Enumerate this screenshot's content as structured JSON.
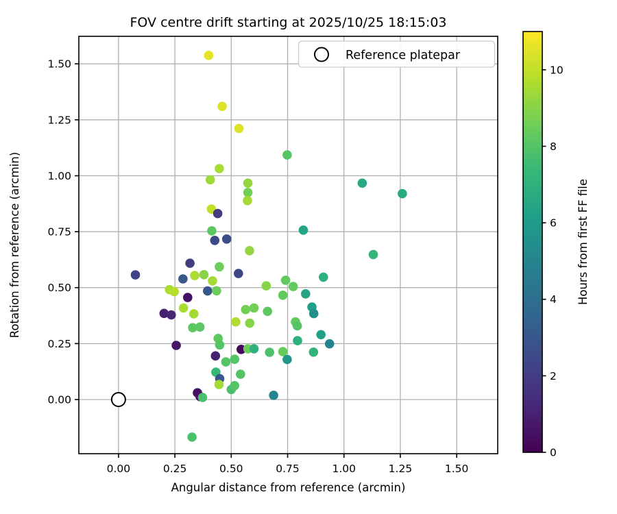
{
  "chart_data": {
    "type": "scatter",
    "title": "FOV centre drift starting at 2025/10/25 18:15:03",
    "xlabel": "Angular distance from reference (arcmin)",
    "ylabel": "Rotation from reference (arcmin)",
    "xlim": [
      -0.176,
      1.682
    ],
    "ylim": [
      -0.242,
      1.623
    ],
    "grid": true,
    "xticks": {
      "values": [
        0.0,
        0.25,
        0.5,
        0.75,
        1.0,
        1.25,
        1.5
      ],
      "labels": [
        "0.00",
        "0.25",
        "0.50",
        "0.75",
        "1.00",
        "1.25",
        "1.50"
      ]
    },
    "yticks": {
      "values": [
        0.0,
        0.25,
        0.5,
        0.75,
        1.0,
        1.25,
        1.5
      ],
      "labels": [
        "0.00",
        "0.25",
        "0.50",
        "0.75",
        "1.00",
        "1.25",
        "1.50"
      ]
    },
    "legend": {
      "label": "Reference platepar",
      "position": "upper right",
      "marker": "open-circle"
    },
    "colorbar": {
      "label": "Hours from first FF file",
      "vmin": 0,
      "vmax": 11,
      "ticks": {
        "values": [
          0,
          2,
          4,
          6,
          8,
          10
        ],
        "labels": [
          "0",
          "2",
          "4",
          "6",
          "8",
          "10"
        ]
      },
      "colormap": "viridis"
    },
    "reference_point": {
      "x": 0.0,
      "y": 0.0
    },
    "points_format": [
      "x_arcmin",
      "y_arcmin",
      "hours_from_first_FF_file"
    ],
    "points": [
      [
        0.4,
        1.538,
        10.6
      ],
      [
        0.46,
        1.31,
        10.4
      ],
      [
        0.534,
        1.211,
        10.4
      ],
      [
        0.447,
        1.032,
        9.6
      ],
      [
        0.407,
        0.982,
        9.4
      ],
      [
        0.574,
        0.967,
        9.2
      ],
      [
        0.574,
        0.925,
        8.6
      ],
      [
        0.572,
        0.889,
        9.5
      ],
      [
        0.748,
        1.093,
        8.0
      ],
      [
        1.081,
        0.967,
        6.6
      ],
      [
        0.82,
        0.757,
        6.4
      ],
      [
        0.581,
        0.665,
        9.2
      ],
      [
        1.13,
        0.648,
        7.3
      ],
      [
        1.259,
        0.92,
        6.7
      ],
      [
        0.412,
        0.851,
        10.0
      ],
      [
        0.44,
        0.831,
        2.0
      ],
      [
        0.414,
        0.754,
        8.2
      ],
      [
        0.427,
        0.711,
        2.4
      ],
      [
        0.48,
        0.717,
        2.6
      ],
      [
        0.317,
        0.609,
        2.0
      ],
      [
        0.075,
        0.557,
        2.2
      ],
      [
        0.447,
        0.593,
        8.5
      ],
      [
        0.286,
        0.539,
        3.0
      ],
      [
        0.338,
        0.554,
        9.6
      ],
      [
        0.379,
        0.558,
        9.0
      ],
      [
        0.532,
        0.563,
        2.4
      ],
      [
        0.417,
        0.53,
        9.5
      ],
      [
        0.226,
        0.491,
        9.6
      ],
      [
        0.247,
        0.482,
        9.8
      ],
      [
        0.395,
        0.485,
        3.0
      ],
      [
        0.435,
        0.486,
        8.5
      ],
      [
        0.307,
        0.456,
        0.5
      ],
      [
        0.288,
        0.409,
        9.6
      ],
      [
        0.202,
        0.385,
        1.0
      ],
      [
        0.234,
        0.378,
        1.1
      ],
      [
        0.334,
        0.383,
        9.5
      ],
      [
        0.52,
        0.347,
        9.7
      ],
      [
        0.329,
        0.321,
        8.2
      ],
      [
        0.361,
        0.324,
        8.2
      ],
      [
        0.442,
        0.273,
        8.2
      ],
      [
        0.449,
        0.244,
        8.0
      ],
      [
        0.256,
        0.242,
        0.7
      ],
      [
        0.43,
        0.195,
        1.0
      ],
      [
        0.476,
        0.168,
        8.0
      ],
      [
        0.432,
        0.122,
        7.4
      ],
      [
        0.449,
        0.093,
        3.0
      ],
      [
        0.446,
        0.067,
        9.5
      ],
      [
        0.35,
        0.03,
        0.4
      ],
      [
        0.362,
        0.013,
        0.5
      ],
      [
        0.373,
        0.009,
        7.8
      ],
      [
        0.564,
        0.402,
        8.6
      ],
      [
        0.601,
        0.409,
        8.6
      ],
      [
        0.661,
        0.394,
        8.2
      ],
      [
        0.858,
        0.413,
        6.1
      ],
      [
        0.866,
        0.384,
        5.5
      ],
      [
        0.582,
        0.341,
        9.0
      ],
      [
        0.785,
        0.347,
        8.3
      ],
      [
        0.793,
        0.329,
        8.0
      ],
      [
        0.898,
        0.29,
        6.2
      ],
      [
        0.936,
        0.249,
        5.0
      ],
      [
        0.794,
        0.263,
        7.0
      ],
      [
        0.544,
        0.224,
        0.2
      ],
      [
        0.574,
        0.227,
        8.5
      ],
      [
        0.601,
        0.227,
        7.0
      ],
      [
        0.67,
        0.211,
        7.8
      ],
      [
        0.729,
        0.214,
        8.4
      ],
      [
        0.748,
        0.179,
        5.8
      ],
      [
        0.865,
        0.212,
        7.2
      ],
      [
        0.515,
        0.18,
        8.0
      ],
      [
        0.541,
        0.113,
        8.0
      ],
      [
        0.5,
        0.045,
        7.8
      ],
      [
        0.515,
        0.062,
        8.0
      ],
      [
        0.688,
        0.019,
        5.0
      ],
      [
        0.741,
        0.533,
        8.3
      ],
      [
        0.909,
        0.547,
        7.0
      ],
      [
        0.775,
        0.505,
        8.3
      ],
      [
        0.83,
        0.472,
        6.4
      ],
      [
        0.655,
        0.508,
        9.0
      ],
      [
        0.729,
        0.466,
        8.3
      ],
      [
        0.326,
        -0.168,
        7.8
      ]
    ]
  },
  "colors": {
    "background": "#ffffff",
    "grid": "#b0b0b0",
    "spine": "#000000",
    "text": "#000000",
    "legend_border": "#cccccc",
    "marker_edge": "#000000",
    "viridis_stops": [
      "#440154",
      "#482878",
      "#3e4989",
      "#31688e",
      "#26828e",
      "#1f9e89",
      "#35b779",
      "#6ece58",
      "#b5de2b",
      "#fde725"
    ]
  }
}
